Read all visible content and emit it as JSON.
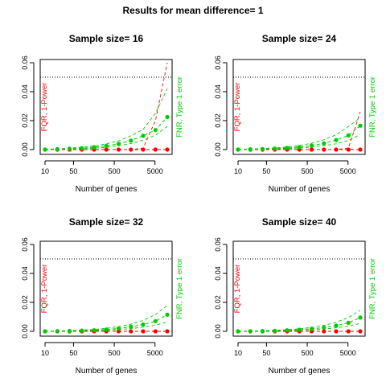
{
  "figure": {
    "title": "Results for mean difference= 1"
  },
  "colors": {
    "fqr": "#ff0000",
    "fnr": "#00cd00",
    "reference": "#000000",
    "frame": "#000000"
  },
  "chart_data": [
    {
      "type": "line",
      "title": "Sample size= 16",
      "xlabel": "Number of genes",
      "ylabel_left": "FQR, 1-Power",
      "ylabel_right": "FNR, Type 1 error",
      "x_scale": "log",
      "xlim": [
        10,
        10000
      ],
      "ylim": [
        0,
        0.06
      ],
      "x_ticks": [
        10,
        50,
        500,
        5000
      ],
      "y_ticks": [
        "0.00",
        "0.02",
        "0.04",
        "0.06"
      ],
      "reference_line": 0.05,
      "grid": false,
      "x": [
        10,
        20,
        40,
        80,
        160,
        320,
        640,
        1280,
        2560,
        5120,
        10000
      ],
      "series": [
        {
          "values": [
            0,
            0,
            0,
            0,
            0,
            0,
            0,
            0,
            0,
            0,
            0
          ]
        },
        {
          "values": [
            0.0,
            0.0003,
            0.0006,
            0.001,
            0.0016,
            0.0026,
            0.004,
            0.0062,
            0.0095,
            0.0135,
            0.0225
          ]
        }
      ],
      "bands": [
        {
          "upper": [
            0,
            0,
            0,
            0,
            0,
            0,
            0,
            0,
            0.001,
            0.02,
            0.06
          ],
          "lower": [
            0,
            0,
            0,
            0,
            0,
            0,
            0,
            0,
            0,
            0,
            0
          ]
        },
        {
          "upper": [
            0.0002,
            0.0005,
            0.001,
            0.0016,
            0.0025,
            0.004,
            0.006,
            0.0095,
            0.014,
            0.025,
            0.042
          ],
          "lower": [
            0,
            0.0001,
            0.0003,
            0.0006,
            0.001,
            0.0016,
            0.0026,
            0.0042,
            0.0065,
            0.01,
            0.016
          ]
        }
      ]
    },
    {
      "type": "line",
      "title": "Sample size= 24",
      "xlabel": "Number of genes",
      "ylabel_left": "FQR, 1-Power",
      "ylabel_right": "FNR, Type 1 error",
      "x_scale": "log",
      "xlim": [
        10,
        10000
      ],
      "ylim": [
        0,
        0.06
      ],
      "x_ticks": [
        10,
        50,
        500,
        5000
      ],
      "y_ticks": [
        "0.00",
        "0.02",
        "0.04",
        "0.06"
      ],
      "reference_line": 0.05,
      "grid": false,
      "x": [
        10,
        20,
        40,
        80,
        160,
        320,
        640,
        1280,
        2560,
        5120,
        10000
      ],
      "series": [
        {
          "values": [
            0,
            0,
            0,
            0,
            0,
            0,
            0,
            0,
            0,
            0,
            0
          ]
        },
        {
          "values": [
            0.0,
            0.0002,
            0.0004,
            0.0007,
            0.0011,
            0.0018,
            0.0028,
            0.0043,
            0.0066,
            0.0098,
            0.0165
          ]
        }
      ],
      "bands": [
        {
          "upper": [
            0,
            0,
            0,
            0,
            0,
            0,
            0,
            0,
            0,
            0.001,
            0.026
          ],
          "lower": [
            0,
            0,
            0,
            0,
            0,
            0,
            0,
            0,
            0,
            0,
            0
          ]
        },
        {
          "upper": [
            0.0001,
            0.0004,
            0.0007,
            0.0012,
            0.0018,
            0.0028,
            0.0044,
            0.0068,
            0.0102,
            0.016,
            0.022
          ],
          "lower": [
            0,
            0,
            0.0002,
            0.0004,
            0.0007,
            0.0011,
            0.0017,
            0.0027,
            0.004,
            0.0062,
            0.0105
          ]
        }
      ]
    },
    {
      "type": "line",
      "title": "Sample size= 32",
      "xlabel": "Number of genes",
      "ylabel_left": "FQR, 1-Power",
      "ylabel_right": "FNR, Type 1 error",
      "x_scale": "log",
      "xlim": [
        10,
        10000
      ],
      "ylim": [
        0,
        0.06
      ],
      "x_ticks": [
        10,
        50,
        500,
        5000
      ],
      "y_ticks": [
        "0.00",
        "0.02",
        "0.04",
        "0.06"
      ],
      "reference_line": 0.05,
      "grid": false,
      "x": [
        10,
        20,
        40,
        80,
        160,
        320,
        640,
        1280,
        2560,
        5120,
        10000
      ],
      "series": [
        {
          "values": [
            0,
            0,
            0,
            0,
            0,
            0,
            0,
            0,
            0,
            0,
            0
          ]
        },
        {
          "values": [
            0.0,
            0.0001,
            0.0003,
            0.0005,
            0.0008,
            0.0013,
            0.002,
            0.0031,
            0.0047,
            0.007,
            0.0115
          ]
        }
      ],
      "bands": [
        {
          "upper": [
            0,
            0,
            0,
            0,
            0,
            0,
            0,
            0,
            0,
            0,
            0
          ],
          "lower": [
            0,
            0,
            0,
            0,
            0,
            0,
            0,
            0,
            0,
            0,
            0
          ]
        },
        {
          "upper": [
            0.0001,
            0.0003,
            0.0005,
            0.0009,
            0.0013,
            0.0021,
            0.0032,
            0.0049,
            0.0075,
            0.0115,
            0.018
          ],
          "lower": [
            0,
            0,
            0.0001,
            0.0003,
            0.0005,
            0.0008,
            0.0012,
            0.0019,
            0.0029,
            0.0043,
            0.0065
          ]
        }
      ]
    },
    {
      "type": "line",
      "title": "Sample size= 40",
      "xlabel": "Number of genes",
      "ylabel_left": "FQR, 1-Power",
      "ylabel_right": "FNR, Type 1 error",
      "x_scale": "log",
      "xlim": [
        10,
        10000
      ],
      "ylim": [
        0,
        0.06
      ],
      "x_ticks": [
        10,
        50,
        500,
        5000
      ],
      "y_ticks": [
        "0.00",
        "0.02",
        "0.04",
        "0.06"
      ],
      "reference_line": 0.05,
      "grid": false,
      "x": [
        10,
        20,
        40,
        80,
        160,
        320,
        640,
        1280,
        2560,
        5120,
        10000
      ],
      "series": [
        {
          "values": [
            0,
            0,
            0,
            0,
            0,
            0,
            0,
            0,
            0,
            0,
            0
          ]
        },
        {
          "values": [
            0.0,
            0.0001,
            0.0002,
            0.0004,
            0.0007,
            0.0011,
            0.0017,
            0.0026,
            0.0039,
            0.0059,
            0.0095
          ]
        }
      ],
      "bands": [
        {
          "upper": [
            0,
            0,
            0,
            0,
            0,
            0,
            0,
            0,
            0,
            0,
            0
          ],
          "lower": [
            0,
            0,
            0,
            0,
            0,
            0,
            0,
            0,
            0,
            0,
            0
          ]
        },
        {
          "upper": [
            0.0001,
            0.0002,
            0.0004,
            0.0007,
            0.0011,
            0.0017,
            0.0027,
            0.0041,
            0.0062,
            0.0095,
            0.0145
          ],
          "lower": [
            0,
            0,
            0.0001,
            0.0002,
            0.0004,
            0.0007,
            0.001,
            0.0016,
            0.0024,
            0.0036,
            0.0055
          ]
        }
      ]
    }
  ]
}
